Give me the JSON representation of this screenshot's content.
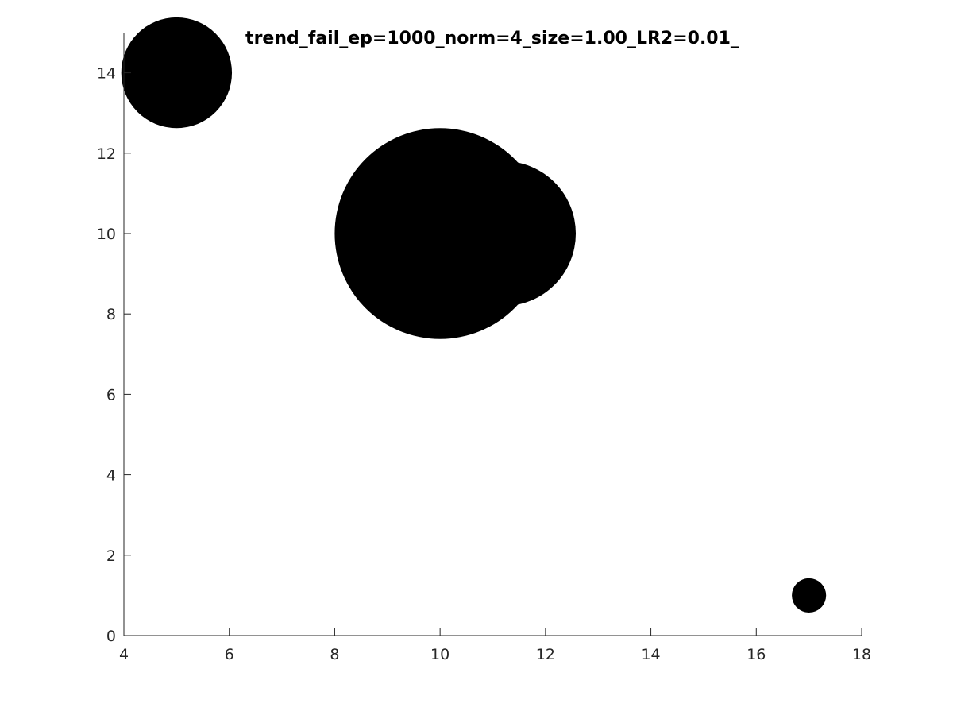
{
  "chart_data": {
    "type": "scatter",
    "title": "trend_fail_ep=1000_norm=4_size=1.00_LR2=0.01_",
    "xlabel": "",
    "ylabel": "",
    "xlim": [
      4,
      18
    ],
    "ylim": [
      0,
      15
    ],
    "xticks": [
      4,
      6,
      8,
      10,
      12,
      14,
      16,
      18
    ],
    "yticks": [
      0,
      2,
      4,
      6,
      8,
      10,
      12,
      14
    ],
    "grid": false,
    "axes_box": false,
    "marker_color": "#000000",
    "series": [
      {
        "points": [
          {
            "x": 5,
            "y": 14,
            "size": 2.1
          },
          {
            "x": 10,
            "y": 10,
            "size": 4.0
          },
          {
            "x": 11.2,
            "y": 10,
            "size": 2.75
          },
          {
            "x": 17,
            "y": 1,
            "size": 0.65
          }
        ]
      }
    ]
  }
}
